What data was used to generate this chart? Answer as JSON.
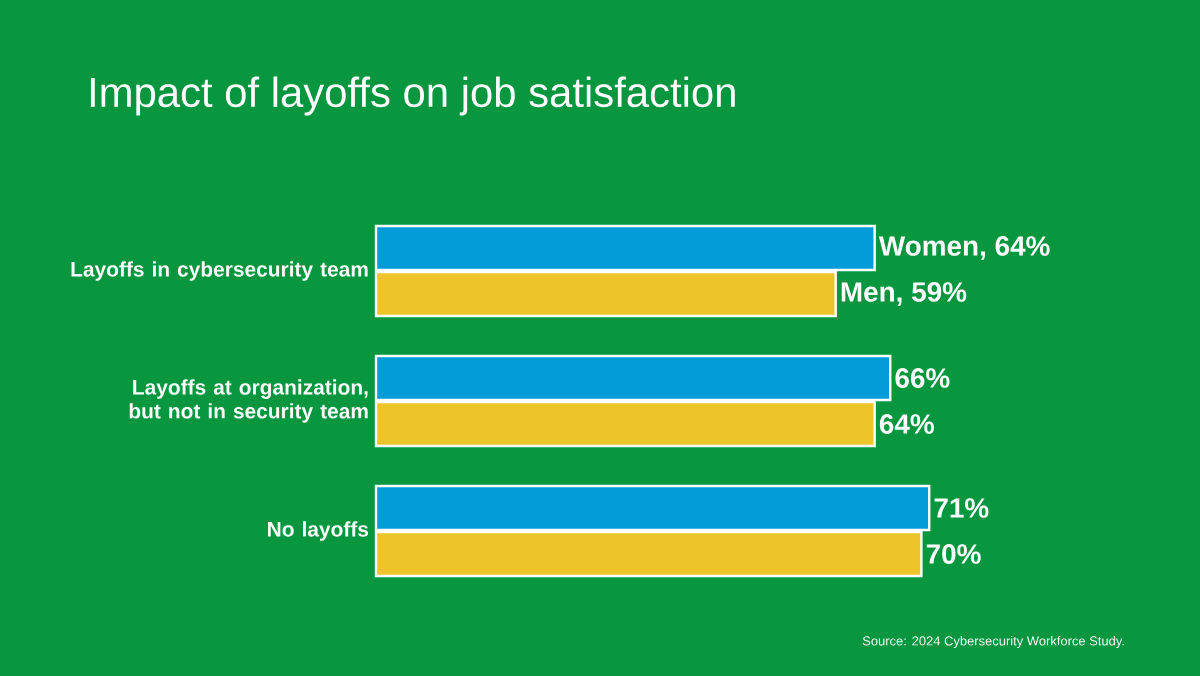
{
  "chart_data": {
    "type": "bar",
    "orientation": "horizontal",
    "title": "Impact of layoffs on job satisfaction",
    "categories": [
      "Layoffs in cybersecurity team",
      "Layoffs at organization, but not in security team",
      "No layoffs"
    ],
    "series": [
      {
        "color": "#049bd9",
        "values": [
          64,
          66,
          71
        ],
        "value_labels": [
          "Women, 64%",
          "66%",
          "71%"
        ]
      },
      {
        "color": "#edc42a",
        "values": [
          59,
          64,
          70
        ],
        "value_labels": [
          "Men, 59%",
          "64%",
          "70%"
        ]
      }
    ],
    "annotations": [
      "Source: 2024 Cybersecurity Workforce Study."
    ]
  }
}
